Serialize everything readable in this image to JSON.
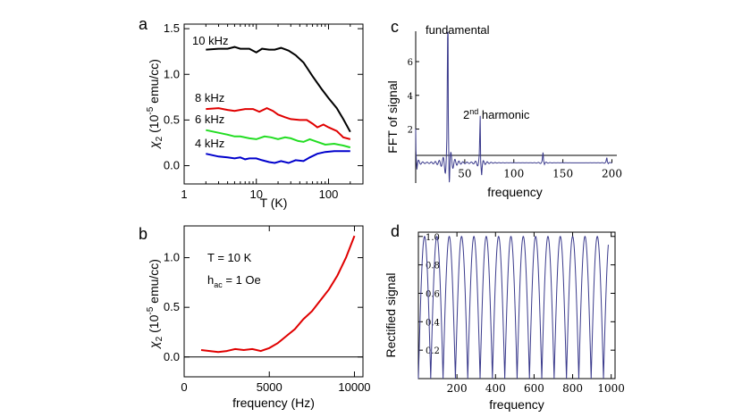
{
  "chart_data": [
    {
      "panel": "a",
      "type": "line",
      "xscale": "log",
      "xlabel": "T (K)",
      "ylabel_main": "χ",
      "ylabel_sub": "2",
      "ylabel_rest": " (10",
      "ylabel_exp": "-5",
      "ylabel_end": " emu/cc)",
      "xlim": [
        1,
        300
      ],
      "ylim": [
        -0.2,
        1.55
      ],
      "xticks": [
        1,
        10,
        100
      ],
      "xtick_labels": [
        "1",
        "10",
        "100"
      ],
      "yticks": [
        0.0,
        0.5,
        1.0,
        1.5
      ],
      "ytick_labels": [
        "0.0",
        "0.5",
        "1.0",
        "1.5"
      ],
      "series": [
        {
          "name": "10 kHz",
          "color": "#000000",
          "x": [
            2,
            3,
            4,
            5,
            6,
            8,
            10,
            12,
            15,
            18,
            22,
            28,
            35,
            45,
            60,
            80,
            100,
            130,
            160,
            200
          ],
          "y": [
            1.27,
            1.28,
            1.28,
            1.3,
            1.28,
            1.28,
            1.24,
            1.28,
            1.27,
            1.27,
            1.29,
            1.26,
            1.21,
            1.13,
            0.98,
            0.84,
            0.74,
            0.63,
            0.51,
            0.37
          ]
        },
        {
          "name": "8 kHz",
          "color": "#e00000",
          "x": [
            2,
            3,
            4,
            5,
            7,
            9,
            11,
            14,
            17,
            20,
            25,
            30,
            40,
            50,
            60,
            70,
            85,
            100,
            130,
            160,
            200
          ],
          "y": [
            0.62,
            0.63,
            0.61,
            0.6,
            0.62,
            0.62,
            0.59,
            0.63,
            0.6,
            0.56,
            0.53,
            0.51,
            0.5,
            0.5,
            0.46,
            0.42,
            0.45,
            0.42,
            0.38,
            0.31,
            0.29
          ]
        },
        {
          "name": "6 kHz",
          "color": "#22dd22",
          "x": [
            2,
            3,
            4,
            5,
            6,
            8,
            10,
            13,
            16,
            20,
            25,
            30,
            38,
            45,
            55,
            70,
            90,
            120,
            160,
            200
          ],
          "y": [
            0.39,
            0.36,
            0.34,
            0.32,
            0.32,
            0.3,
            0.29,
            0.32,
            0.31,
            0.29,
            0.31,
            0.3,
            0.27,
            0.26,
            0.29,
            0.26,
            0.23,
            0.24,
            0.22,
            0.2
          ]
        },
        {
          "name": "4 kHz",
          "color": "#0000cc",
          "x": [
            2,
            3,
            4,
            5,
            6,
            7,
            8,
            10,
            12,
            15,
            18,
            22,
            28,
            35,
            45,
            55,
            70,
            90,
            120,
            160,
            200
          ],
          "y": [
            0.13,
            0.1,
            0.09,
            0.08,
            0.09,
            0.07,
            0.08,
            0.08,
            0.06,
            0.04,
            0.03,
            0.05,
            0.03,
            0.06,
            0.05,
            0.09,
            0.13,
            0.15,
            0.16,
            0.16,
            0.16
          ]
        }
      ],
      "legend_labels": [
        "10 kHz",
        "8 kHz",
        "6 kHz",
        "4 kHz"
      ]
    },
    {
      "panel": "b",
      "type": "line",
      "xlabel": "frequency (Hz)",
      "ylabel_main": "χ",
      "ylabel_sub": "2",
      "ylabel_rest": " (10",
      "ylabel_exp": "-5",
      "ylabel_end": " emu/cc)",
      "xlim": [
        0,
        10500
      ],
      "ylim": [
        -0.2,
        1.32
      ],
      "xticks": [
        0,
        5000,
        10000
      ],
      "xtick_labels": [
        "0",
        "5000",
        "10000"
      ],
      "yticks": [
        0.0,
        0.5,
        1.0
      ],
      "ytick_labels": [
        "0.0",
        "0.5",
        "1.0"
      ],
      "zero_line": true,
      "annotation_line1": "T = 10 K",
      "annotation_h": "h",
      "annotation_sub": "ac",
      "annotation_rest": " = 1 Oe",
      "series": [
        {
          "name": "χ2",
          "color": "#e00000",
          "x": [
            1000,
            1500,
            2000,
            2500,
            3000,
            3500,
            4000,
            4500,
            5000,
            5500,
            6000,
            6500,
            7000,
            7500,
            8000,
            8500,
            9000,
            9500,
            10000
          ],
          "y": [
            0.07,
            0.06,
            0.05,
            0.06,
            0.08,
            0.07,
            0.08,
            0.06,
            0.09,
            0.14,
            0.21,
            0.28,
            0.38,
            0.46,
            0.57,
            0.68,
            0.82,
            1.0,
            1.22
          ]
        }
      ]
    },
    {
      "panel": "c",
      "type": "line",
      "xlabel": "frequency",
      "ylabel": "FFT  of signal",
      "xlim": [
        0,
        205
      ],
      "ylim": [
        -1.2,
        7.8
      ],
      "xticks": [
        50,
        100,
        150,
        200
      ],
      "xtick_labels": [
        "50",
        "100",
        "150",
        "200"
      ],
      "yticks": [
        2,
        4,
        6
      ],
      "ytick_labels": [
        "2",
        "4",
        "6"
      ],
      "annotation_fundamental": "fundamental",
      "annotation_harmonic_num": "2",
      "annotation_harmonic_sup": "nd",
      "annotation_harmonic_rest": " harmonic",
      "peaks": [
        {
          "x": 0,
          "height": 2.0
        },
        {
          "x": 33,
          "height": 7.6
        },
        {
          "x": 66,
          "height": 2.3
        },
        {
          "x": 130,
          "height": 0.5
        },
        {
          "x": 195,
          "height": 0.25
        }
      ],
      "line_color": "#3a3a8c"
    },
    {
      "panel": "d",
      "type": "line",
      "xlabel": "frequency",
      "ylabel": "Rectified signal",
      "xlim": [
        0,
        1020
      ],
      "ylim": [
        0,
        1.03
      ],
      "xticks": [
        200,
        400,
        600,
        800,
        1000
      ],
      "xtick_labels": [
        "200",
        "400",
        "600",
        "800",
        "1000"
      ],
      "yticks": [
        0.2,
        0.4,
        0.6,
        0.8,
        1.0
      ],
      "ytick_labels": [
        "0.2",
        "0.4",
        "0.6",
        "0.8",
        "1.0"
      ],
      "curve": "|sin|",
      "num_humps": 15,
      "period": 64,
      "x_end": 985,
      "line_color": "#3a3a8c"
    }
  ],
  "panel_labels": [
    "a",
    "b",
    "c",
    "d"
  ]
}
